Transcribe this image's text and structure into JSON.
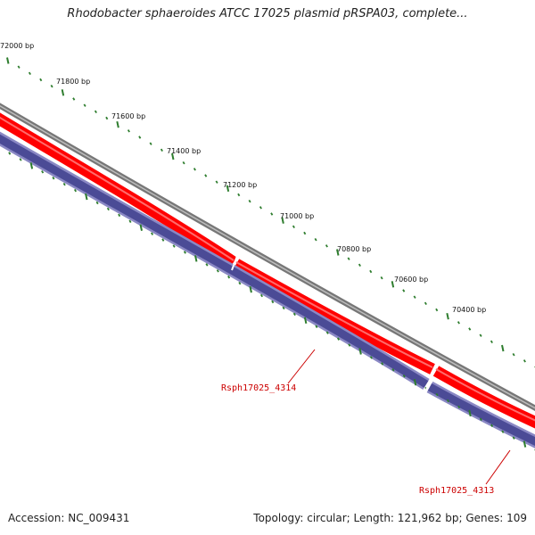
{
  "title": "Rhodobacter sphaeroides ATCC 17025 plasmid pRSPA03, complete...",
  "footer": {
    "accession": "Accession: NC_009431",
    "summary": "Topology: circular; Length: 121,962 bp; Genes: 109"
  },
  "ruler": {
    "labels": [
      "72000 bp",
      "71800 bp",
      "71600 bp",
      "71400 bp",
      "71200 bp",
      "71000 bp",
      "70800 bp",
      "70600 bp",
      "70400 bp"
    ]
  },
  "genes": [
    {
      "locus_tag": "Rsph17025_4314"
    },
    {
      "locus_tag": "Rsph17025_4313"
    }
  ],
  "colors": {
    "backbone": "#777777",
    "gene_fill": "#ff0000",
    "gene_outline": "#cc0000",
    "orf_fill": "#4b4b96",
    "orf_outline": "#8a88c4",
    "ticks": "#2e7d2e",
    "gene_label": "#cc0000"
  }
}
